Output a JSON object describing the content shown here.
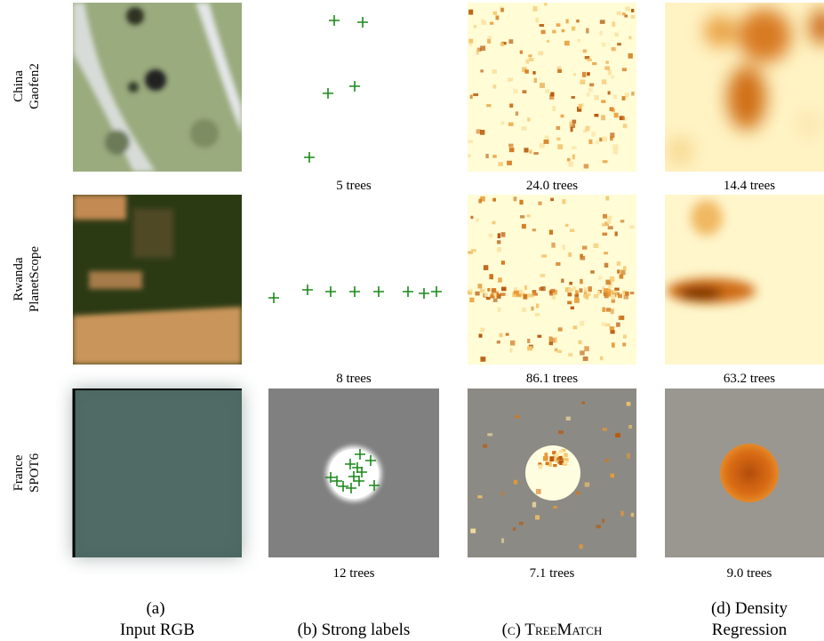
{
  "rows": [
    {
      "region": "China",
      "sensor": "Gaofen2",
      "counts": [
        "5 trees",
        "24.0 trees",
        "14.4 trees"
      ]
    },
    {
      "region": "Rwanda",
      "sensor": "PlanetScope",
      "counts": [
        "8 trees",
        "86.1 trees",
        "63.2 trees"
      ]
    },
    {
      "region": "France",
      "sensor": "SPOT6",
      "counts": [
        "12 trees",
        "7.1 trees",
        "9.0 trees"
      ]
    }
  ],
  "columns": [
    {
      "letter": "(a)",
      "title": "Input RGB"
    },
    {
      "title": "(b) Strong labels"
    },
    {
      "title": "(c) TreeMatch"
    },
    {
      "title": "(d) Density",
      "subtitle": "Regression"
    }
  ]
}
